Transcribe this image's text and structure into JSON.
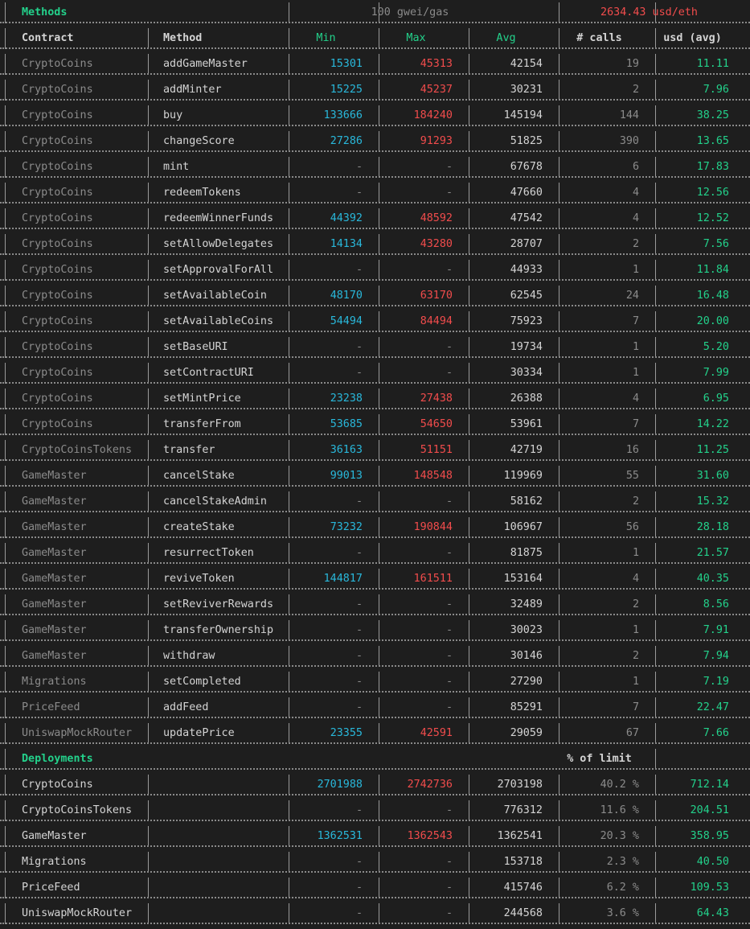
{
  "colors": {
    "background": "#1e1e1e",
    "text": "#d4d4d4",
    "dim": "#8b8b8b",
    "green": "#23d18b",
    "cyan": "#29b8db",
    "red": "#f14c4c",
    "border": "#9a9a9a"
  },
  "header": {
    "section_title": "Methods",
    "gas_price": "100 gwei/gas",
    "eth_price": "2634.43 usd/eth"
  },
  "columns": {
    "contract": "Contract",
    "method": "Method",
    "min": "Min",
    "max": "Max",
    "avg": "Avg",
    "calls": "# calls",
    "usd": "usd (avg)"
  },
  "methods": [
    {
      "contract": "CryptoCoins",
      "method": "addGameMaster",
      "min": "15301",
      "max": "45313",
      "avg": "42154",
      "calls": "19",
      "usd": "11.11"
    },
    {
      "contract": "CryptoCoins",
      "method": "addMinter",
      "min": "15225",
      "max": "45237",
      "avg": "30231",
      "calls": "2",
      "usd": "7.96"
    },
    {
      "contract": "CryptoCoins",
      "method": "buy",
      "min": "133666",
      "max": "184240",
      "avg": "145194",
      "calls": "144",
      "usd": "38.25"
    },
    {
      "contract": "CryptoCoins",
      "method": "changeScore",
      "min": "27286",
      "max": "91293",
      "avg": "51825",
      "calls": "390",
      "usd": "13.65"
    },
    {
      "contract": "CryptoCoins",
      "method": "mint",
      "min": "-",
      "max": "-",
      "avg": "67678",
      "calls": "6",
      "usd": "17.83"
    },
    {
      "contract": "CryptoCoins",
      "method": "redeemTokens",
      "min": "-",
      "max": "-",
      "avg": "47660",
      "calls": "4",
      "usd": "12.56"
    },
    {
      "contract": "CryptoCoins",
      "method": "redeemWinnerFunds",
      "min": "44392",
      "max": "48592",
      "avg": "47542",
      "calls": "4",
      "usd": "12.52"
    },
    {
      "contract": "CryptoCoins",
      "method": "setAllowDelegates",
      "min": "14134",
      "max": "43280",
      "avg": "28707",
      "calls": "2",
      "usd": "7.56"
    },
    {
      "contract": "CryptoCoins",
      "method": "setApprovalForAll",
      "min": "-",
      "max": "-",
      "avg": "44933",
      "calls": "1",
      "usd": "11.84"
    },
    {
      "contract": "CryptoCoins",
      "method": "setAvailableCoin",
      "min": "48170",
      "max": "63170",
      "avg": "62545",
      "calls": "24",
      "usd": "16.48"
    },
    {
      "contract": "CryptoCoins",
      "method": "setAvailableCoins",
      "min": "54494",
      "max": "84494",
      "avg": "75923",
      "calls": "7",
      "usd": "20.00"
    },
    {
      "contract": "CryptoCoins",
      "method": "setBaseURI",
      "min": "-",
      "max": "-",
      "avg": "19734",
      "calls": "1",
      "usd": "5.20"
    },
    {
      "contract": "CryptoCoins",
      "method": "setContractURI",
      "min": "-",
      "max": "-",
      "avg": "30334",
      "calls": "1",
      "usd": "7.99"
    },
    {
      "contract": "CryptoCoins",
      "method": "setMintPrice",
      "min": "23238",
      "max": "27438",
      "avg": "26388",
      "calls": "4",
      "usd": "6.95"
    },
    {
      "contract": "CryptoCoins",
      "method": "transferFrom",
      "min": "53685",
      "max": "54650",
      "avg": "53961",
      "calls": "7",
      "usd": "14.22"
    },
    {
      "contract": "CryptoCoinsTokens",
      "method": "transfer",
      "min": "36163",
      "max": "51151",
      "avg": "42719",
      "calls": "16",
      "usd": "11.25"
    },
    {
      "contract": "GameMaster",
      "method": "cancelStake",
      "min": "99013",
      "max": "148548",
      "avg": "119969",
      "calls": "55",
      "usd": "31.60"
    },
    {
      "contract": "GameMaster",
      "method": "cancelStakeAdmin",
      "min": "-",
      "max": "-",
      "avg": "58162",
      "calls": "2",
      "usd": "15.32"
    },
    {
      "contract": "GameMaster",
      "method": "createStake",
      "min": "73232",
      "max": "190844",
      "avg": "106967",
      "calls": "56",
      "usd": "28.18"
    },
    {
      "contract": "GameMaster",
      "method": "resurrectToken",
      "min": "-",
      "max": "-",
      "avg": "81875",
      "calls": "1",
      "usd": "21.57"
    },
    {
      "contract": "GameMaster",
      "method": "reviveToken",
      "min": "144817",
      "max": "161511",
      "avg": "153164",
      "calls": "4",
      "usd": "40.35"
    },
    {
      "contract": "GameMaster",
      "method": "setReviverRewards",
      "min": "-",
      "max": "-",
      "avg": "32489",
      "calls": "2",
      "usd": "8.56"
    },
    {
      "contract": "GameMaster",
      "method": "transferOwnership",
      "min": "-",
      "max": "-",
      "avg": "30023",
      "calls": "1",
      "usd": "7.91"
    },
    {
      "contract": "GameMaster",
      "method": "withdraw",
      "min": "-",
      "max": "-",
      "avg": "30146",
      "calls": "2",
      "usd": "7.94"
    },
    {
      "contract": "Migrations",
      "method": "setCompleted",
      "min": "-",
      "max": "-",
      "avg": "27290",
      "calls": "1",
      "usd": "7.19"
    },
    {
      "contract": "PriceFeed",
      "method": "addFeed",
      "min": "-",
      "max": "-",
      "avg": "85291",
      "calls": "7",
      "usd": "22.47"
    },
    {
      "contract": "UniswapMockRouter",
      "method": "updatePrice",
      "min": "23355",
      "max": "42591",
      "avg": "29059",
      "calls": "67",
      "usd": "7.66"
    }
  ],
  "deployments_header": {
    "section_title": "Deployments",
    "limit_label": "% of limit"
  },
  "deployments": [
    {
      "contract": "CryptoCoins",
      "min": "2701988",
      "max": "2742736",
      "avg": "2703198",
      "limit": "40.2 %",
      "usd": "712.14"
    },
    {
      "contract": "CryptoCoinsTokens",
      "min": "-",
      "max": "-",
      "avg": "776312",
      "limit": "11.6 %",
      "usd": "204.51"
    },
    {
      "contract": "GameMaster",
      "min": "1362531",
      "max": "1362543",
      "avg": "1362541",
      "limit": "20.3 %",
      "usd": "358.95"
    },
    {
      "contract": "Migrations",
      "min": "-",
      "max": "-",
      "avg": "153718",
      "limit": "2.3 %",
      "usd": "40.50"
    },
    {
      "contract": "PriceFeed",
      "min": "-",
      "max": "-",
      "avg": "415746",
      "limit": "6.2 %",
      "usd": "109.53"
    },
    {
      "contract": "UniswapMockRouter",
      "min": "-",
      "max": "-",
      "avg": "244568",
      "limit": "3.6 %",
      "usd": "64.43"
    }
  ]
}
